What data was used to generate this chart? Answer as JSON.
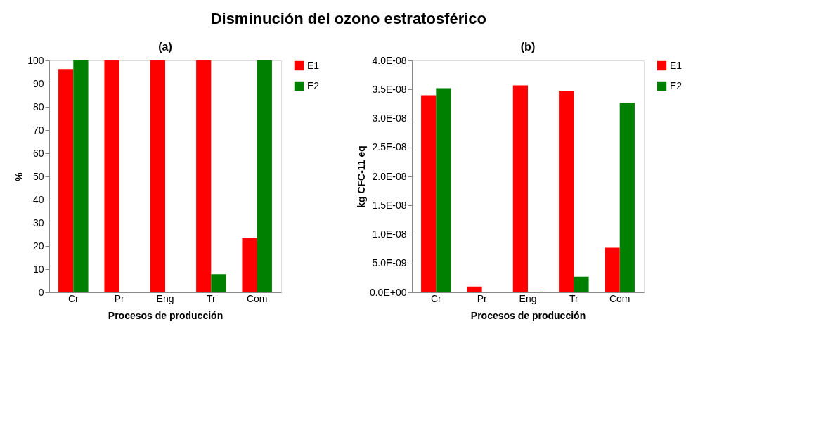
{
  "chart_data": [
    {
      "type": "bar",
      "title": "(a)",
      "xlabel": "Procesos de producción",
      "ylabel": "%",
      "categories": [
        "Cr",
        "Pr",
        "Eng",
        "Tr",
        "Com"
      ],
      "series": [
        {
          "name": "E1",
          "color": "#ff0000",
          "values": [
            96.3,
            100,
            100,
            100,
            23.4
          ]
        },
        {
          "name": "E2",
          "color": "#008000",
          "values": [
            100,
            0,
            0,
            7.8,
            100
          ]
        }
      ],
      "ylim": [
        0,
        100
      ],
      "yticks": [
        0,
        10,
        20,
        30,
        40,
        50,
        60,
        70,
        80,
        90,
        100
      ],
      "grid": false,
      "legend": "right",
      "annotations": [
        "Disminución del ozono estratosférico"
      ]
    },
    {
      "type": "bar",
      "title": "(b)",
      "xlabel": "Procesos de producción",
      "ylabel": "kg CFC-11 eq",
      "categories": [
        "Cr",
        "Pr",
        "Eng",
        "Tr",
        "Com"
      ],
      "series": [
        {
          "name": "E1",
          "color": "#ff0000",
          "values": [
            3.4e-08,
            1e-09,
            3.57e-08,
            3.48e-08,
            7.7e-09
          ]
        },
        {
          "name": "E2",
          "color": "#008000",
          "values": [
            3.52e-08,
            0,
            1e-10,
            2.7e-09,
            3.27e-08
          ]
        }
      ],
      "ylim": [
        0,
        4e-08
      ],
      "yticks": [
        {
          "value": 0,
          "label": "0.0E+00"
        },
        {
          "value": 5e-09,
          "label": "5.0E-09"
        },
        {
          "value": 1e-08,
          "label": "1.0E-08"
        },
        {
          "value": 1.5e-08,
          "label": "1.5E-08"
        },
        {
          "value": 2e-08,
          "label": "2.0E-08"
        },
        {
          "value": 2.5e-08,
          "label": "2.5E-08"
        },
        {
          "value": 3e-08,
          "label": "3.0E-08"
        },
        {
          "value": 3.5e-08,
          "label": "3.5E-08"
        },
        {
          "value": 4e-08,
          "label": "4.0E-08"
        }
      ],
      "grid": false,
      "legend": "right"
    }
  ]
}
